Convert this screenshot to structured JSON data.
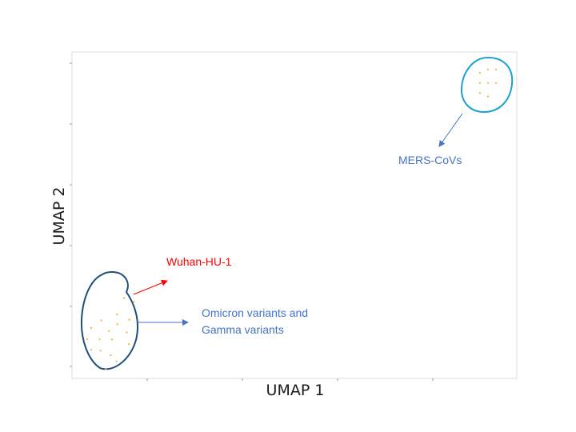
{
  "chart_data": {
    "type": "scatter",
    "title": "",
    "xlabel": "UMAP 1",
    "ylabel": "UMAP 2",
    "xlim": [
      0,
      1
    ],
    "ylim": [
      0,
      1
    ],
    "grid": false,
    "legend": "none",
    "point_color": "#f5b041",
    "series": [
      {
        "points": [
          [
            0.101,
            0.196
          ],
          [
            0.117,
            0.246
          ],
          [
            0.129,
            0.18
          ],
          [
            0.139,
            0.235
          ],
          [
            0.043,
            0.155
          ],
          [
            0.066,
            0.178
          ],
          [
            0.083,
            0.145
          ],
          [
            0.102,
            0.166
          ],
          [
            0.123,
            0.141
          ],
          [
            0.034,
            0.12
          ],
          [
            0.062,
            0.12
          ],
          [
            0.09,
            0.119
          ],
          [
            0.043,
            0.087
          ],
          [
            0.064,
            0.085
          ],
          [
            0.087,
            0.071
          ],
          [
            0.1,
            0.052
          ],
          [
            0.128,
            0.105
          ],
          [
            0.076,
            0.028
          ]
        ]
      },
      {
        "points": [
          [
            0.917,
            0.936
          ],
          [
            0.935,
            0.946
          ],
          [
            0.953,
            0.946
          ],
          [
            0.917,
            0.905
          ],
          [
            0.935,
            0.905
          ],
          [
            0.953,
            0.905
          ],
          [
            0.917,
            0.874
          ],
          [
            0.935,
            0.864
          ]
        ]
      }
    ],
    "annotations": [
      {
        "text": "Wuhan-HU-1",
        "color": "#ff0000"
      },
      {
        "text": "Omicron variants and",
        "color": "#4472c4"
      },
      {
        "text": "Gamma variants",
        "color": "#4472c4"
      },
      {
        "text": "MERS-CoVs",
        "color": "#4472c4"
      }
    ],
    "outline_colors": {
      "cluster_left": "#1f4e79",
      "cluster_right": "#1ba1d1",
      "arrow_red": "#ff0000",
      "arrow_blue": "#4472c4"
    }
  }
}
